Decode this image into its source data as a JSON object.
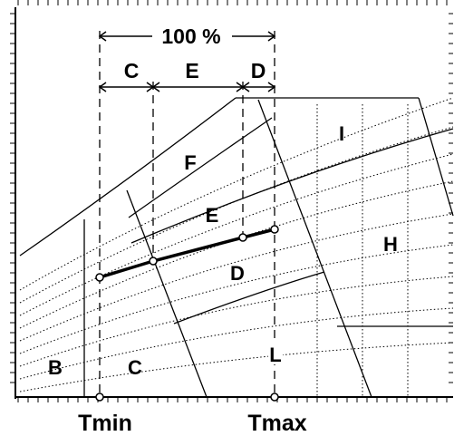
{
  "dimension_labels": {
    "total": "100 %",
    "segment_c": "C",
    "segment_e": "E",
    "segment_d": "D"
  },
  "region_labels": {
    "f": "F",
    "i": "I",
    "e": "E",
    "h": "H",
    "d": "D",
    "b": "B",
    "c": "C",
    "l": "L"
  },
  "axis_labels": {
    "tmin": "Tmin",
    "tmax": "Tmax"
  }
}
